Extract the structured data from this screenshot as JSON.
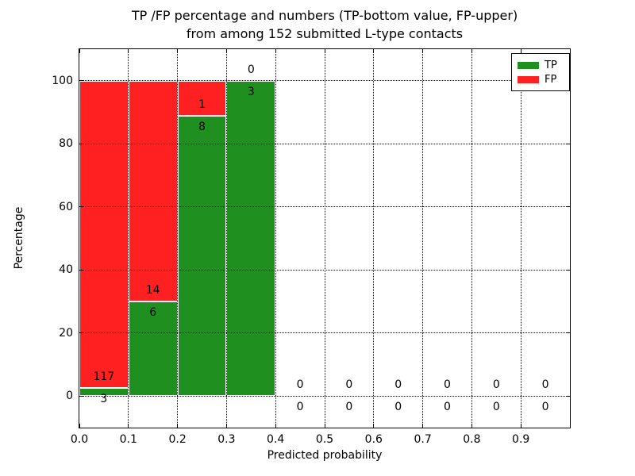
{
  "figure": {
    "background": "#ffffff"
  },
  "chart_data": {
    "type": "bar",
    "stacked": true,
    "title_lines": [
      "TP /FP percentage and numbers (TP-bottom value, FP-upper)",
      "from among 152 submitted L-type contacts"
    ],
    "xlabel": "Predicted probability",
    "ylabel": "Percentage",
    "x_axis": {
      "range": [
        0.0,
        1.0
      ],
      "tick_values": [
        0.0,
        0.1,
        0.2,
        0.3,
        0.4,
        0.5,
        0.6,
        0.7,
        0.8,
        0.9
      ],
      "tick_labels": [
        "0.0",
        "0.1",
        "0.2",
        "0.3",
        "0.4",
        "0.5",
        "0.6",
        "0.7",
        "0.8",
        "0.9"
      ]
    },
    "y_axis": {
      "range": [
        -10,
        110
      ],
      "tick_values": [
        0,
        20,
        40,
        60,
        80,
        100
      ],
      "tick_labels": [
        "0",
        "20",
        "40",
        "60",
        "80",
        "100"
      ]
    },
    "grid": true,
    "bin_width": 0.1,
    "bins": [
      {
        "range": [
          0.0,
          0.1
        ],
        "tp_count": 3,
        "fp_count": 117,
        "tp_pct": 2.5,
        "fp_pct": 97.5
      },
      {
        "range": [
          0.1,
          0.2
        ],
        "tp_count": 6,
        "fp_count": 14,
        "tp_pct": 30.0,
        "fp_pct": 70.0
      },
      {
        "range": [
          0.2,
          0.3
        ],
        "tp_count": 8,
        "fp_count": 1,
        "tp_pct": 88.9,
        "fp_pct": 11.1
      },
      {
        "range": [
          0.3,
          0.4
        ],
        "tp_count": 3,
        "fp_count": 0,
        "tp_pct": 100.0,
        "fp_pct": 0.0
      },
      {
        "range": [
          0.4,
          0.5
        ],
        "tp_count": 0,
        "fp_count": 0,
        "tp_pct": 0.0,
        "fp_pct": 0.0
      },
      {
        "range": [
          0.5,
          0.6
        ],
        "tp_count": 0,
        "fp_count": 0,
        "tp_pct": 0.0,
        "fp_pct": 0.0
      },
      {
        "range": [
          0.6,
          0.7
        ],
        "tp_count": 0,
        "fp_count": 0,
        "tp_pct": 0.0,
        "fp_pct": 0.0
      },
      {
        "range": [
          0.7,
          0.8
        ],
        "tp_count": 0,
        "fp_count": 0,
        "tp_pct": 0.0,
        "fp_pct": 0.0
      },
      {
        "range": [
          0.8,
          0.9
        ],
        "tp_count": 0,
        "fp_count": 0,
        "tp_pct": 0.0,
        "fp_pct": 0.0
      },
      {
        "range": [
          0.9,
          1.0
        ],
        "tp_count": 0,
        "fp_count": 0,
        "tp_pct": 0.0,
        "fp_pct": 0.0
      }
    ],
    "series": [
      {
        "name": "TP",
        "color": "#1f8f1f",
        "values": [
          2.5,
          30.0,
          88.9,
          100.0,
          0,
          0,
          0,
          0,
          0,
          0
        ],
        "counts": [
          3,
          6,
          8,
          3,
          0,
          0,
          0,
          0,
          0,
          0
        ]
      },
      {
        "name": "FP",
        "color": "#ff2121",
        "values": [
          97.5,
          70.0,
          11.1,
          0.0,
          0,
          0,
          0,
          0,
          0,
          0
        ],
        "counts": [
          117,
          14,
          1,
          0,
          0,
          0,
          0,
          0,
          0,
          0
        ]
      }
    ],
    "legend": {
      "position": "upper right",
      "entries": [
        {
          "label": "TP",
          "color": "#1f8f1f"
        },
        {
          "label": "FP",
          "color": "#ff2121"
        }
      ]
    },
    "bar_edge_color": "#ffffff"
  }
}
